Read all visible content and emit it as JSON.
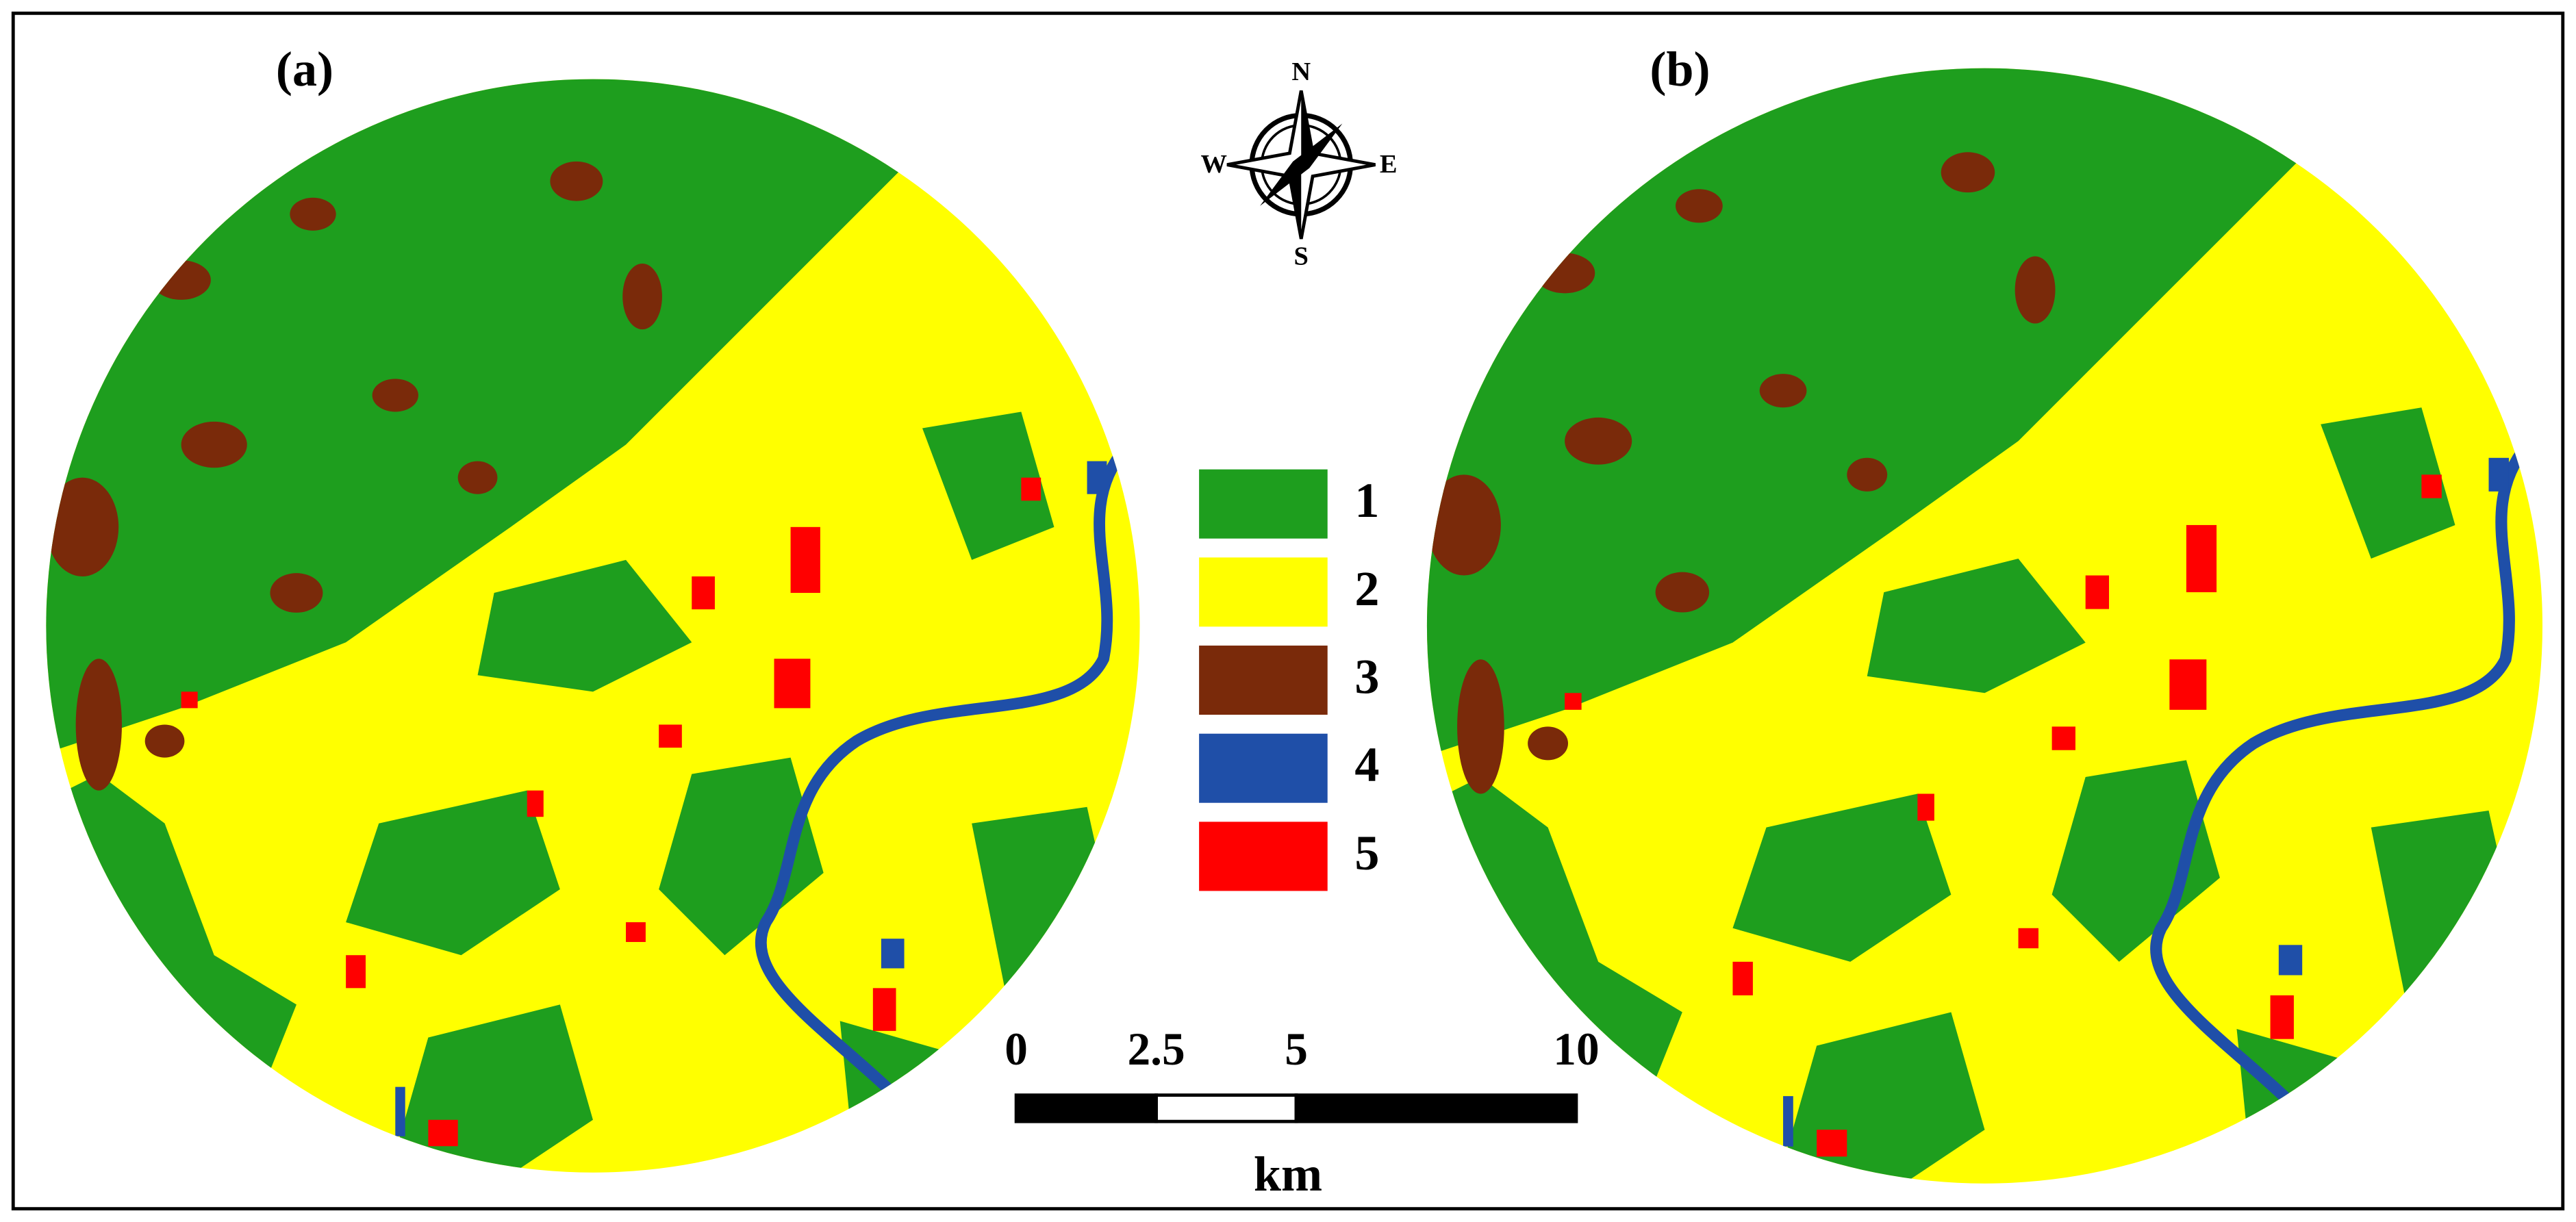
{
  "panels": [
    {
      "label": "(a)"
    },
    {
      "label": "(b)"
    }
  ],
  "compass": {
    "north": "N",
    "south": "S",
    "east": "E",
    "west": "W"
  },
  "legend": [
    {
      "label": "1",
      "color": "#1e9e1e"
    },
    {
      "label": "2",
      "color": "#ffff00"
    },
    {
      "label": "3",
      "color": "#7a2a0a"
    },
    {
      "label": "4",
      "color": "#1f4fa8"
    },
    {
      "label": "5",
      "color": "#ff0000"
    }
  ],
  "scale": {
    "ticks": [
      0,
      2.5,
      5,
      10
    ],
    "unit": "km"
  }
}
